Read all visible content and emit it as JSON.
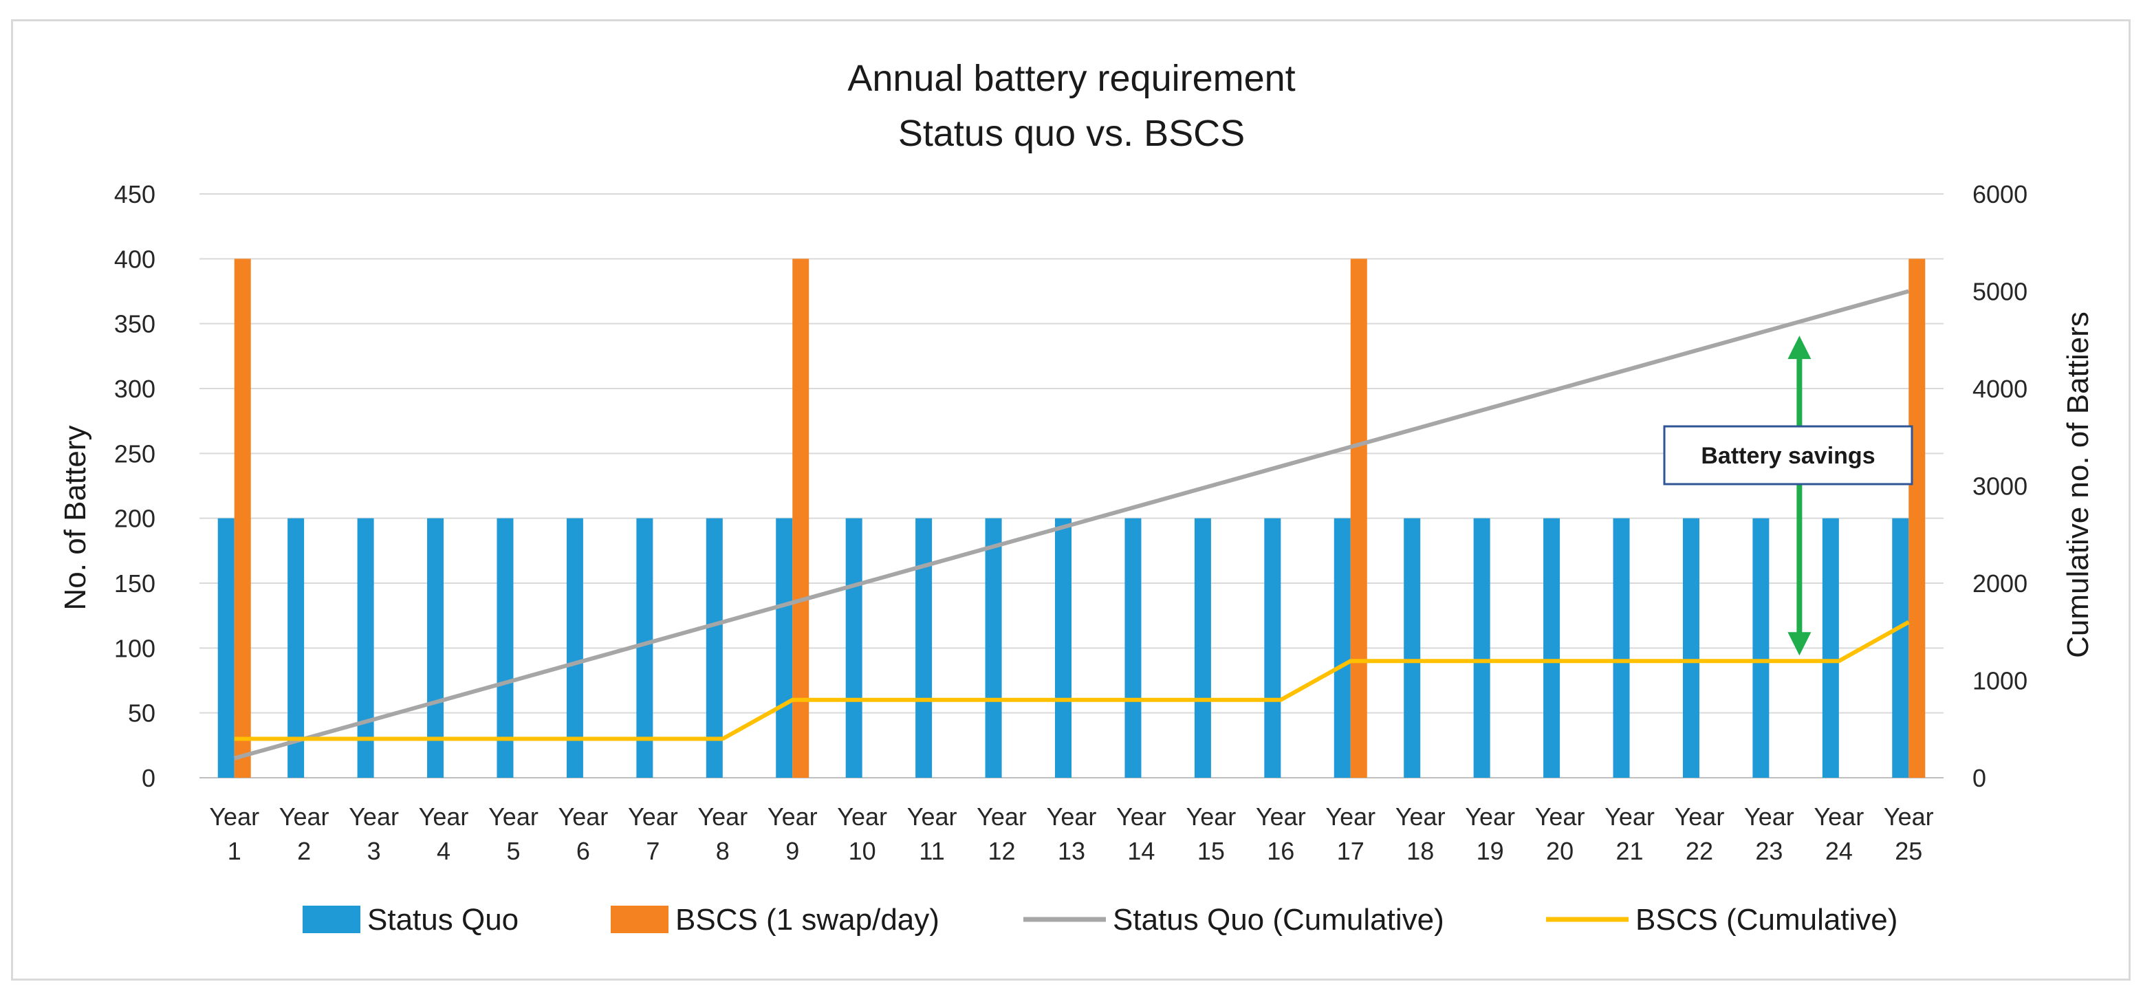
{
  "chart_data": {
    "type": "bar+line",
    "title": [
      "Annual battery requirement",
      "Status quo vs. BSCS"
    ],
    "ylabel_left": "No. of Battery",
    "ylabel_right": "Cumulative no. of Battiers",
    "ylim_left": [
      0,
      450
    ],
    "yticks_left": [
      0,
      50,
      100,
      150,
      200,
      250,
      300,
      350,
      400,
      450
    ],
    "ylim_right": [
      0,
      6000
    ],
    "yticks_right": [
      0,
      1000,
      2000,
      3000,
      4000,
      5000,
      6000
    ],
    "categories": [
      [
        "Year",
        "1"
      ],
      [
        "Year",
        "2"
      ],
      [
        "Year",
        "3"
      ],
      [
        "Year",
        "4"
      ],
      [
        "Year",
        "5"
      ],
      [
        "Year",
        "6"
      ],
      [
        "Year",
        "7"
      ],
      [
        "Year",
        "8"
      ],
      [
        "Year",
        "9"
      ],
      [
        "Year",
        "10"
      ],
      [
        "Year",
        "11"
      ],
      [
        "Year",
        "12"
      ],
      [
        "Year",
        "13"
      ],
      [
        "Year",
        "14"
      ],
      [
        "Year",
        "15"
      ],
      [
        "Year",
        "16"
      ],
      [
        "Year",
        "17"
      ],
      [
        "Year",
        "18"
      ],
      [
        "Year",
        "19"
      ],
      [
        "Year",
        "20"
      ],
      [
        "Year",
        "21"
      ],
      [
        "Year",
        "22"
      ],
      [
        "Year",
        "23"
      ],
      [
        "Year",
        "24"
      ],
      [
        "Year",
        "25"
      ]
    ],
    "grid": true,
    "legend_position": "bottom",
    "bar_series": [
      {
        "name": "Status Quo",
        "color": "#1f9ad6",
        "values": [
          200,
          200,
          200,
          200,
          200,
          200,
          200,
          200,
          200,
          200,
          200,
          200,
          200,
          200,
          200,
          200,
          200,
          200,
          200,
          200,
          200,
          200,
          200,
          200,
          200
        ]
      },
      {
        "name": "BSCS (1 swap/day)",
        "color": "#f58220",
        "values": [
          400,
          0,
          0,
          0,
          0,
          0,
          0,
          0,
          400,
          0,
          0,
          0,
          0,
          0,
          0,
          0,
          400,
          0,
          0,
          0,
          0,
          0,
          0,
          0,
          400
        ]
      }
    ],
    "line_series": [
      {
        "name": "Status Quo (Cumulative)",
        "color": "#a6a6a6",
        "values": [
          200,
          400,
          600,
          800,
          1000,
          1200,
          1400,
          1600,
          1800,
          2000,
          2200,
          2400,
          2600,
          2800,
          3000,
          3200,
          3400,
          3600,
          3800,
          4000,
          4200,
          4400,
          4600,
          4800,
          5000
        ]
      },
      {
        "name": "BSCS (Cumulative)",
        "color": "#ffc000",
        "values": [
          400,
          400,
          400,
          400,
          400,
          400,
          400,
          400,
          800,
          800,
          800,
          800,
          800,
          800,
          800,
          800,
          1200,
          1200,
          1200,
          1200,
          1200,
          1200,
          1200,
          1200,
          1600
        ]
      }
    ],
    "annotation": {
      "label": "Battery savings",
      "arrow_color": "#1fae4b",
      "category_index": 22,
      "from_value": 1200,
      "to_value": 4600
    }
  }
}
